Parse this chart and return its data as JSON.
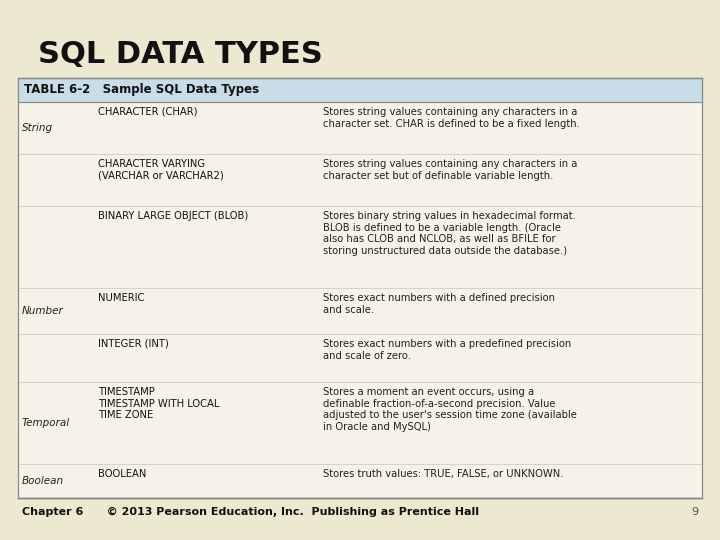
{
  "title": "SQL DATA TYPES",
  "title_fontsize": 22,
  "title_fontweight": "bold",
  "table_header": "TABLE 6-2   Sample SQL Data Types",
  "table_header_bg": "#c8dde8",
  "table_header_fontsize": 8.5,
  "bg_color": "#ede8d0",
  "table_bg": "#f5f2e8",
  "footer_text": "Chapter 6      © 2013 Pearson Education, Inc.  Publishing as Prentice Hall",
  "footer_fontsize": 8,
  "page_number": "9",
  "rows": [
    {
      "category": "String",
      "type": "CHARACTER (CHAR)",
      "description": "Stores string values containing any characters in a\ncharacter set. CHAR is defined to be a fixed length."
    },
    {
      "category": "",
      "type": "CHARACTER VARYING\n(VARCHAR or VARCHAR2)",
      "description": "Stores string values containing any characters in a\ncharacter set but of definable variable length."
    },
    {
      "category": "",
      "type": "BINARY LARGE OBJECT (BLOB)",
      "description": "Stores binary string values in hexadecimal format.\nBLOB is defined to be a variable length. (Oracle\nalso has CLOB and NCLOB, as well as BFILE for\nstoring unstructured data outside the database.)"
    },
    {
      "category": "Number",
      "type": "NUMERIC",
      "description": "Stores exact numbers with a defined precision\nand scale."
    },
    {
      "category": "",
      "type": "INTEGER (INT)",
      "description": "Stores exact numbers with a predefined precision\nand scale of zero."
    },
    {
      "category": "Temporal",
      "type": "TIMESTAMP\nTIMESTAMP WITH LOCAL\nTIME ZONE",
      "description": "Stores a moment an event occurs, using a\ndefinable fraction-of-a-second precision. Value\nadjusted to the user's session time zone (available\nin Oracle and MySQL)"
    },
    {
      "category": "Boolean",
      "type": "BOOLEAN",
      "description": "Stores truth values: TRUE, FALSE, or UNKNOWN."
    }
  ],
  "cat_fontsize": 7.5,
  "type_fontsize": 7.2,
  "desc_fontsize": 7.2
}
